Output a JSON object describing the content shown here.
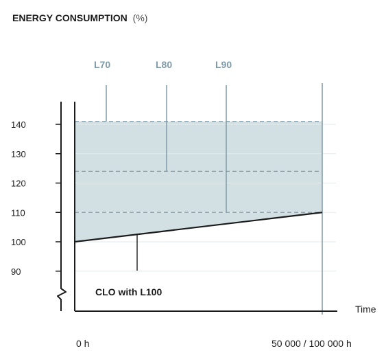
{
  "chart_data": {
    "type": "area",
    "title": "ENERGY CONSUMPTION",
    "title_unit": "(%)",
    "xlabel": "Time",
    "x_tick_labels": [
      "0 h",
      "50 000 / 100 000 h"
    ],
    "ylim": [
      85,
      150
    ],
    "y_ticks": [
      90,
      100,
      110,
      120,
      130,
      140
    ],
    "grid": true,
    "series": [
      {
        "name": "CLO with L100",
        "x": [
          0,
          1
        ],
        "y": [
          100,
          110
        ]
      }
    ],
    "reference_levels": [
      {
        "label": "L70",
        "value": 141
      },
      {
        "label": "L80",
        "value": 124
      },
      {
        "label": "L90",
        "value": 110
      }
    ],
    "shaded_region": {
      "from_series": "CLO with L100",
      "to": 141
    },
    "colors": {
      "fill": "#d3e0e3",
      "line": "#1b1b1b",
      "marker_line": "#7f9aa8",
      "dashed": "#7f9aa8",
      "grid": "#e3eaec",
      "text": "#1b1b1b"
    }
  }
}
